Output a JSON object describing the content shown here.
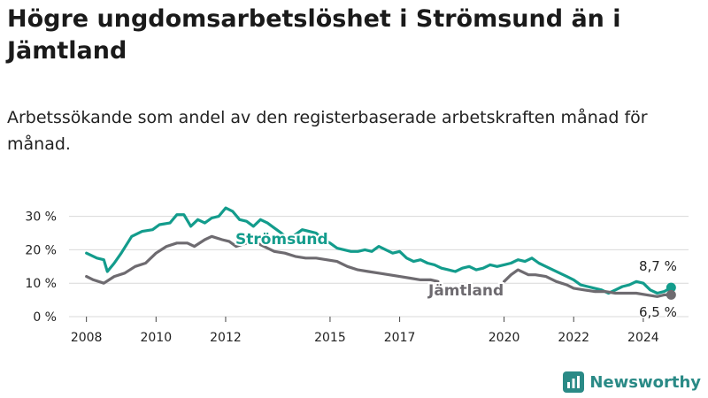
{
  "title": "Högre ungdomsarbetslöshet i Strömsund än i Jämtland",
  "subtitle": "Arbetssökande som andel av den registerbaserade arbetskraften månad för månad.",
  "brand": "Newsworthy",
  "colors": {
    "stromsund": "#139c8c",
    "jamtland": "#6e6b70",
    "grid": "#d9d9d9"
  },
  "chart_data": {
    "type": "line",
    "title": "Högre ungdomsarbetslöshet i Strömsund än i Jämtland",
    "subtitle": "Arbetssökande som andel av den registerbaserade arbetskraften månad för månad.",
    "xlabel": "",
    "ylabel": "",
    "xlim": [
      2007.5,
      2025.3
    ],
    "ylim": [
      0,
      32
    ],
    "x_ticks": [
      2008,
      2010,
      2012,
      2015,
      2017,
      2020,
      2022,
      2024
    ],
    "x_tick_labels": [
      "2008",
      "2010",
      "2012",
      "2015",
      "2017",
      "2020",
      "2022",
      "2024"
    ],
    "y_ticks": [
      0,
      10,
      20,
      30
    ],
    "y_tick_labels": [
      "0 %",
      "10 %",
      "20 %",
      "30 %"
    ],
    "grid": true,
    "legend": "inline labels",
    "series": [
      {
        "name": "Strömsund",
        "color": "#139c8c",
        "end_label": "8,7 %",
        "points": [
          [
            2008.0,
            19.0
          ],
          [
            2008.3,
            17.5
          ],
          [
            2008.5,
            17.0
          ],
          [
            2008.6,
            13.5
          ],
          [
            2008.8,
            16.0
          ],
          [
            2009.0,
            19.0
          ],
          [
            2009.3,
            24.0
          ],
          [
            2009.6,
            25.5
          ],
          [
            2009.9,
            26.0
          ],
          [
            2010.1,
            27.5
          ],
          [
            2010.4,
            28.0
          ],
          [
            2010.6,
            30.5
          ],
          [
            2010.8,
            30.5
          ],
          [
            2011.0,
            27.0
          ],
          [
            2011.2,
            29.0
          ],
          [
            2011.4,
            28.0
          ],
          [
            2011.6,
            29.5
          ],
          [
            2011.8,
            30.0
          ],
          [
            2012.0,
            32.5
          ],
          [
            2012.2,
            31.5
          ],
          [
            2012.4,
            29.0
          ],
          [
            2012.6,
            28.5
          ],
          [
            2012.8,
            27.0
          ],
          [
            2013.0,
            29.0
          ],
          [
            2013.2,
            28.0
          ],
          [
            2013.4,
            26.5
          ],
          [
            2013.6,
            25.0
          ],
          [
            2013.8,
            23.0
          ],
          [
            2014.0,
            24.5
          ],
          [
            2014.2,
            26.0
          ],
          [
            2014.4,
            25.5
          ],
          [
            2014.6,
            25.0
          ],
          [
            2014.8,
            23.0
          ],
          [
            2015.0,
            22.0
          ],
          [
            2015.2,
            20.5
          ],
          [
            2015.4,
            20.0
          ],
          [
            2015.6,
            19.5
          ],
          [
            2015.8,
            19.5
          ],
          [
            2016.0,
            20.0
          ],
          [
            2016.2,
            19.5
          ],
          [
            2016.4,
            21.0
          ],
          [
            2016.6,
            20.0
          ],
          [
            2016.8,
            19.0
          ],
          [
            2017.0,
            19.5
          ],
          [
            2017.2,
            17.5
          ],
          [
            2017.4,
            16.5
          ],
          [
            2017.6,
            17.0
          ],
          [
            2017.8,
            16.0
          ],
          [
            2018.0,
            15.5
          ],
          [
            2018.2,
            14.5
          ],
          [
            2018.4,
            14.0
          ],
          [
            2018.6,
            13.5
          ],
          [
            2018.8,
            14.5
          ],
          [
            2019.0,
            15.0
          ],
          [
            2019.2,
            14.0
          ],
          [
            2019.4,
            14.5
          ],
          [
            2019.6,
            15.5
          ],
          [
            2019.8,
            15.0
          ],
          [
            2020.0,
            15.5
          ],
          [
            2020.2,
            16.0
          ],
          [
            2020.4,
            17.0
          ],
          [
            2020.6,
            16.5
          ],
          [
            2020.8,
            17.5
          ],
          [
            2021.0,
            16.0
          ],
          [
            2021.2,
            15.0
          ],
          [
            2021.4,
            14.0
          ],
          [
            2021.6,
            13.0
          ],
          [
            2021.8,
            12.0
          ],
          [
            2022.0,
            11.0
          ],
          [
            2022.2,
            9.5
          ],
          [
            2022.4,
            9.0
          ],
          [
            2022.6,
            8.5
          ],
          [
            2022.8,
            8.0
          ],
          [
            2023.0,
            7.0
          ],
          [
            2023.2,
            8.0
          ],
          [
            2023.4,
            9.0
          ],
          [
            2023.6,
            9.5
          ],
          [
            2023.8,
            10.5
          ],
          [
            2024.0,
            10.0
          ],
          [
            2024.2,
            8.0
          ],
          [
            2024.4,
            7.0
          ],
          [
            2024.6,
            7.5
          ],
          [
            2024.8,
            8.7
          ]
        ]
      },
      {
        "name": "Jämtland",
        "color": "#6e6b70",
        "end_label": "6,5 %",
        "points": [
          [
            2008.0,
            12.0
          ],
          [
            2008.2,
            11.0
          ],
          [
            2008.5,
            10.0
          ],
          [
            2008.8,
            12.0
          ],
          [
            2009.1,
            13.0
          ],
          [
            2009.4,
            15.0
          ],
          [
            2009.7,
            16.0
          ],
          [
            2010.0,
            19.0
          ],
          [
            2010.3,
            21.0
          ],
          [
            2010.6,
            22.0
          ],
          [
            2010.9,
            22.0
          ],
          [
            2011.1,
            21.0
          ],
          [
            2011.4,
            23.0
          ],
          [
            2011.6,
            24.0
          ],
          [
            2011.9,
            23.0
          ],
          [
            2012.1,
            22.5
          ],
          [
            2012.3,
            21.0
          ],
          [
            2012.6,
            22.0
          ],
          [
            2012.9,
            22.0
          ],
          [
            2013.1,
            21.0
          ],
          [
            2013.4,
            19.5
          ],
          [
            2013.7,
            19.0
          ],
          [
            2014.0,
            18.0
          ],
          [
            2014.3,
            17.5
          ],
          [
            2014.6,
            17.5
          ],
          [
            2014.9,
            17.0
          ],
          [
            2015.2,
            16.5
          ],
          [
            2015.5,
            15.0
          ],
          [
            2015.8,
            14.0
          ],
          [
            2016.1,
            13.5
          ],
          [
            2016.4,
            13.0
          ],
          [
            2016.7,
            12.5
          ],
          [
            2017.0,
            12.0
          ],
          [
            2017.3,
            11.5
          ],
          [
            2017.6,
            11.0
          ],
          [
            2017.9,
            11.0
          ],
          [
            2018.1,
            10.5
          ],
          null,
          [
            2020.0,
            10.5
          ],
          [
            2020.2,
            12.5
          ],
          [
            2020.4,
            14.0
          ],
          [
            2020.7,
            12.5
          ],
          [
            2020.9,
            12.5
          ],
          [
            2021.2,
            12.0
          ],
          [
            2021.5,
            10.5
          ],
          [
            2021.8,
            9.5
          ],
          [
            2022.0,
            8.5
          ],
          [
            2022.3,
            8.0
          ],
          [
            2022.6,
            7.5
          ],
          [
            2022.9,
            7.5
          ],
          [
            2023.2,
            7.0
          ],
          [
            2023.5,
            7.0
          ],
          [
            2023.8,
            7.0
          ],
          [
            2024.1,
            6.5
          ],
          [
            2024.4,
            6.0
          ],
          [
            2024.6,
            6.5
          ],
          [
            2024.8,
            6.5
          ]
        ]
      }
    ]
  }
}
